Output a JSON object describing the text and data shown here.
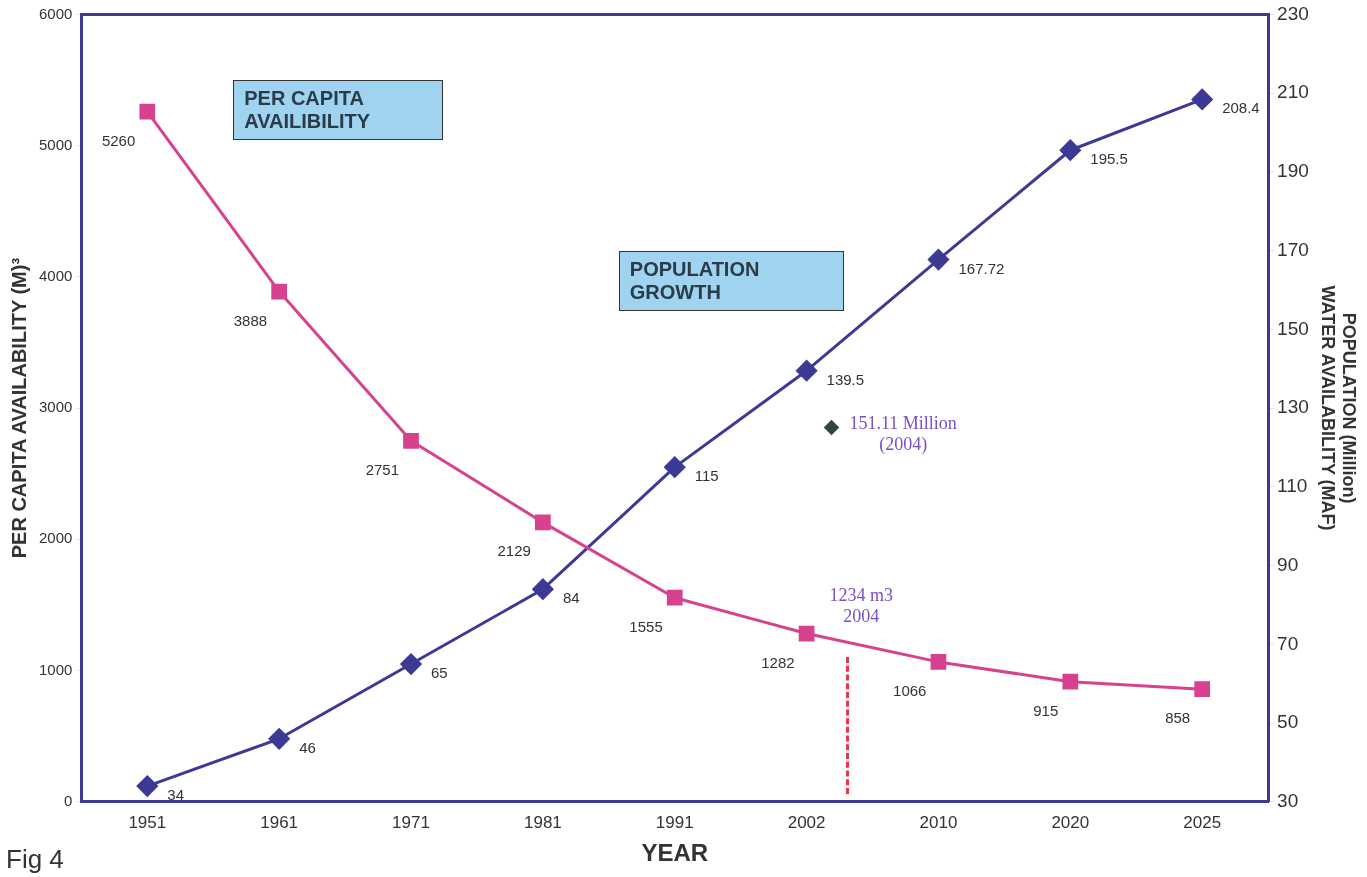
{
  "chart_data": {
    "type": "line",
    "xlabel": "YEAR",
    "ylabel": "PER CAPITA AVAILABILITY (M)³",
    "y2label": "POPULATION (Million)",
    "categories": [
      "1951",
      "1961",
      "1971",
      "1981",
      "1991",
      "2002",
      "2010",
      "2020",
      "2025"
    ],
    "series": [
      {
        "name": null,
        "color": "#d6428e",
        "marker": "square",
        "values": [
          5260,
          3888,
          2751,
          2129,
          1555,
          1282,
          1066,
          915,
          858
        ]
      },
      {
        "name": null,
        "color": "#3d3a96",
        "marker": "diamond",
        "axis": "y2",
        "values": [
          34,
          46,
          65,
          84,
          115,
          139.5,
          167.72,
          195.5,
          208.4
        ]
      }
    ],
    "ylim": [
      0,
      6000
    ],
    "yticks": [
      0,
      1000,
      2000,
      3000,
      4000,
      5000,
      6000
    ],
    "y2lim": [
      30,
      230
    ],
    "y2ticks": [
      30,
      50,
      70,
      90,
      110,
      130,
      150,
      170,
      190,
      210,
      230
    ],
    "annotations": [
      "PER CAPITA AVAILIBILITY",
      "POPULATION GROWTH",
      "151.11 Million (2004)",
      "WATER AVAILABILITY (MAF)",
      "Fig 4",
      "1234 m3 2004"
    ],
    "data_labels": true,
    "grid": false,
    "legend": false
  }
}
